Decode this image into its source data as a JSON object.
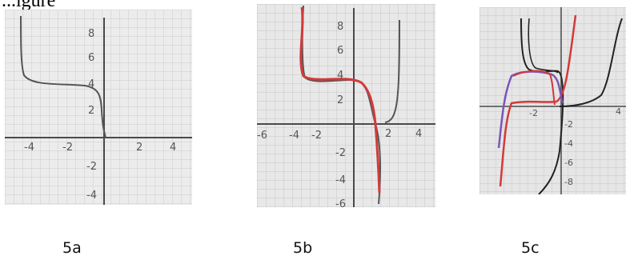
{
  "header": {
    "title_fragment": "...igure"
  },
  "colors": {
    "paper": "#ececec",
    "grid": "#c9c9c9",
    "axis": "#4a4a4a",
    "pencil_curve": "#555555",
    "red_curve": "#d23a3a",
    "purple_curve": "#7a54b8",
    "black_curve": "#222222"
  },
  "figures": [
    {
      "caption": "5a",
      "x_ticks": [
        "-4",
        "-2",
        "2",
        "4"
      ],
      "y_ticks": [
        "8",
        "6",
        "4",
        "2",
        "-2",
        "-4"
      ]
    },
    {
      "caption": "5b",
      "x_ticks": [
        "-6",
        "-4",
        "-2",
        "2",
        "4"
      ],
      "y_ticks": [
        "8",
        "6",
        "4",
        "2",
        "-2",
        "-4",
        "-6"
      ]
    },
    {
      "caption": "5c",
      "x_ticks": [
        "-2",
        "4"
      ],
      "y_ticks": [
        "-2",
        "-4",
        "-6",
        "-8"
      ]
    }
  ]
}
